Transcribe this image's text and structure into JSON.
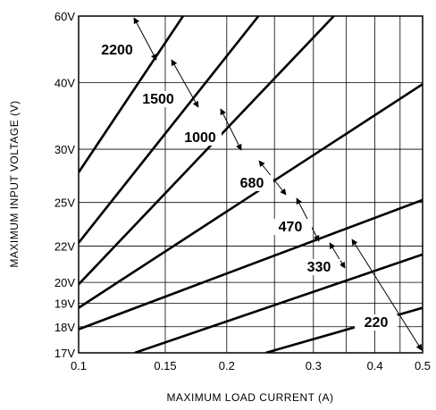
{
  "chart_data": {
    "type": "line",
    "xlabel": "MAXIMUM LOAD CURRENT (A)",
    "ylabel": "MAXIMUM INPUT VOLTAGE (V)",
    "x_scale": "log",
    "xlim": [
      0.1,
      0.5
    ],
    "x_ticks": [
      {
        "value": 0.1,
        "label": "0.1"
      },
      {
        "value": 0.15,
        "label": "0.15"
      },
      {
        "value": 0.2,
        "label": "0.2"
      },
      {
        "value": 0.3,
        "label": "0.3"
      },
      {
        "value": 0.4,
        "label": "0.4"
      },
      {
        "value": 0.5,
        "label": "0.5"
      }
    ],
    "x_gridlines": [
      0.1,
      0.15,
      0.2,
      0.25,
      0.3,
      0.35,
      0.4,
      0.45,
      0.5
    ],
    "y_scale": "reciprocal",
    "ylim": [
      17,
      60
    ],
    "y_ticks": [
      {
        "value": 17,
        "label": "17V"
      },
      {
        "value": 18,
        "label": "18V"
      },
      {
        "value": 19,
        "label": "19V"
      },
      {
        "value": 20,
        "label": "20V"
      },
      {
        "value": 22,
        "label": "22V"
      },
      {
        "value": 25,
        "label": "25V"
      },
      {
        "value": 30,
        "label": "30V"
      },
      {
        "value": 40,
        "label": "40V"
      },
      {
        "value": 60,
        "label": "60V"
      }
    ],
    "grid": true,
    "series": [
      {
        "name": "2200",
        "x": [
          0.1,
          0.163
        ],
        "y": [
          27.6,
          60
        ]
      },
      {
        "name": "1500",
        "x": [
          0.1,
          0.232
        ],
        "y": [
          22.2,
          60
        ]
      },
      {
        "name": "1000",
        "x": [
          0.1,
          0.33
        ],
        "y": [
          19.9,
          60
        ]
      },
      {
        "name": "680",
        "x": [
          0.1,
          0.5
        ],
        "y": [
          18.8,
          39.7
        ]
      },
      {
        "name": "470",
        "x": [
          0.1,
          0.5
        ],
        "y": [
          17.9,
          25.2
        ]
      },
      {
        "name": "330",
        "x": [
          0.13,
          0.5
        ],
        "y": [
          17.0,
          21.5
        ]
      },
      {
        "name": "220",
        "x": [
          0.24,
          0.5
        ],
        "y": [
          17.0,
          18.8
        ]
      }
    ]
  }
}
